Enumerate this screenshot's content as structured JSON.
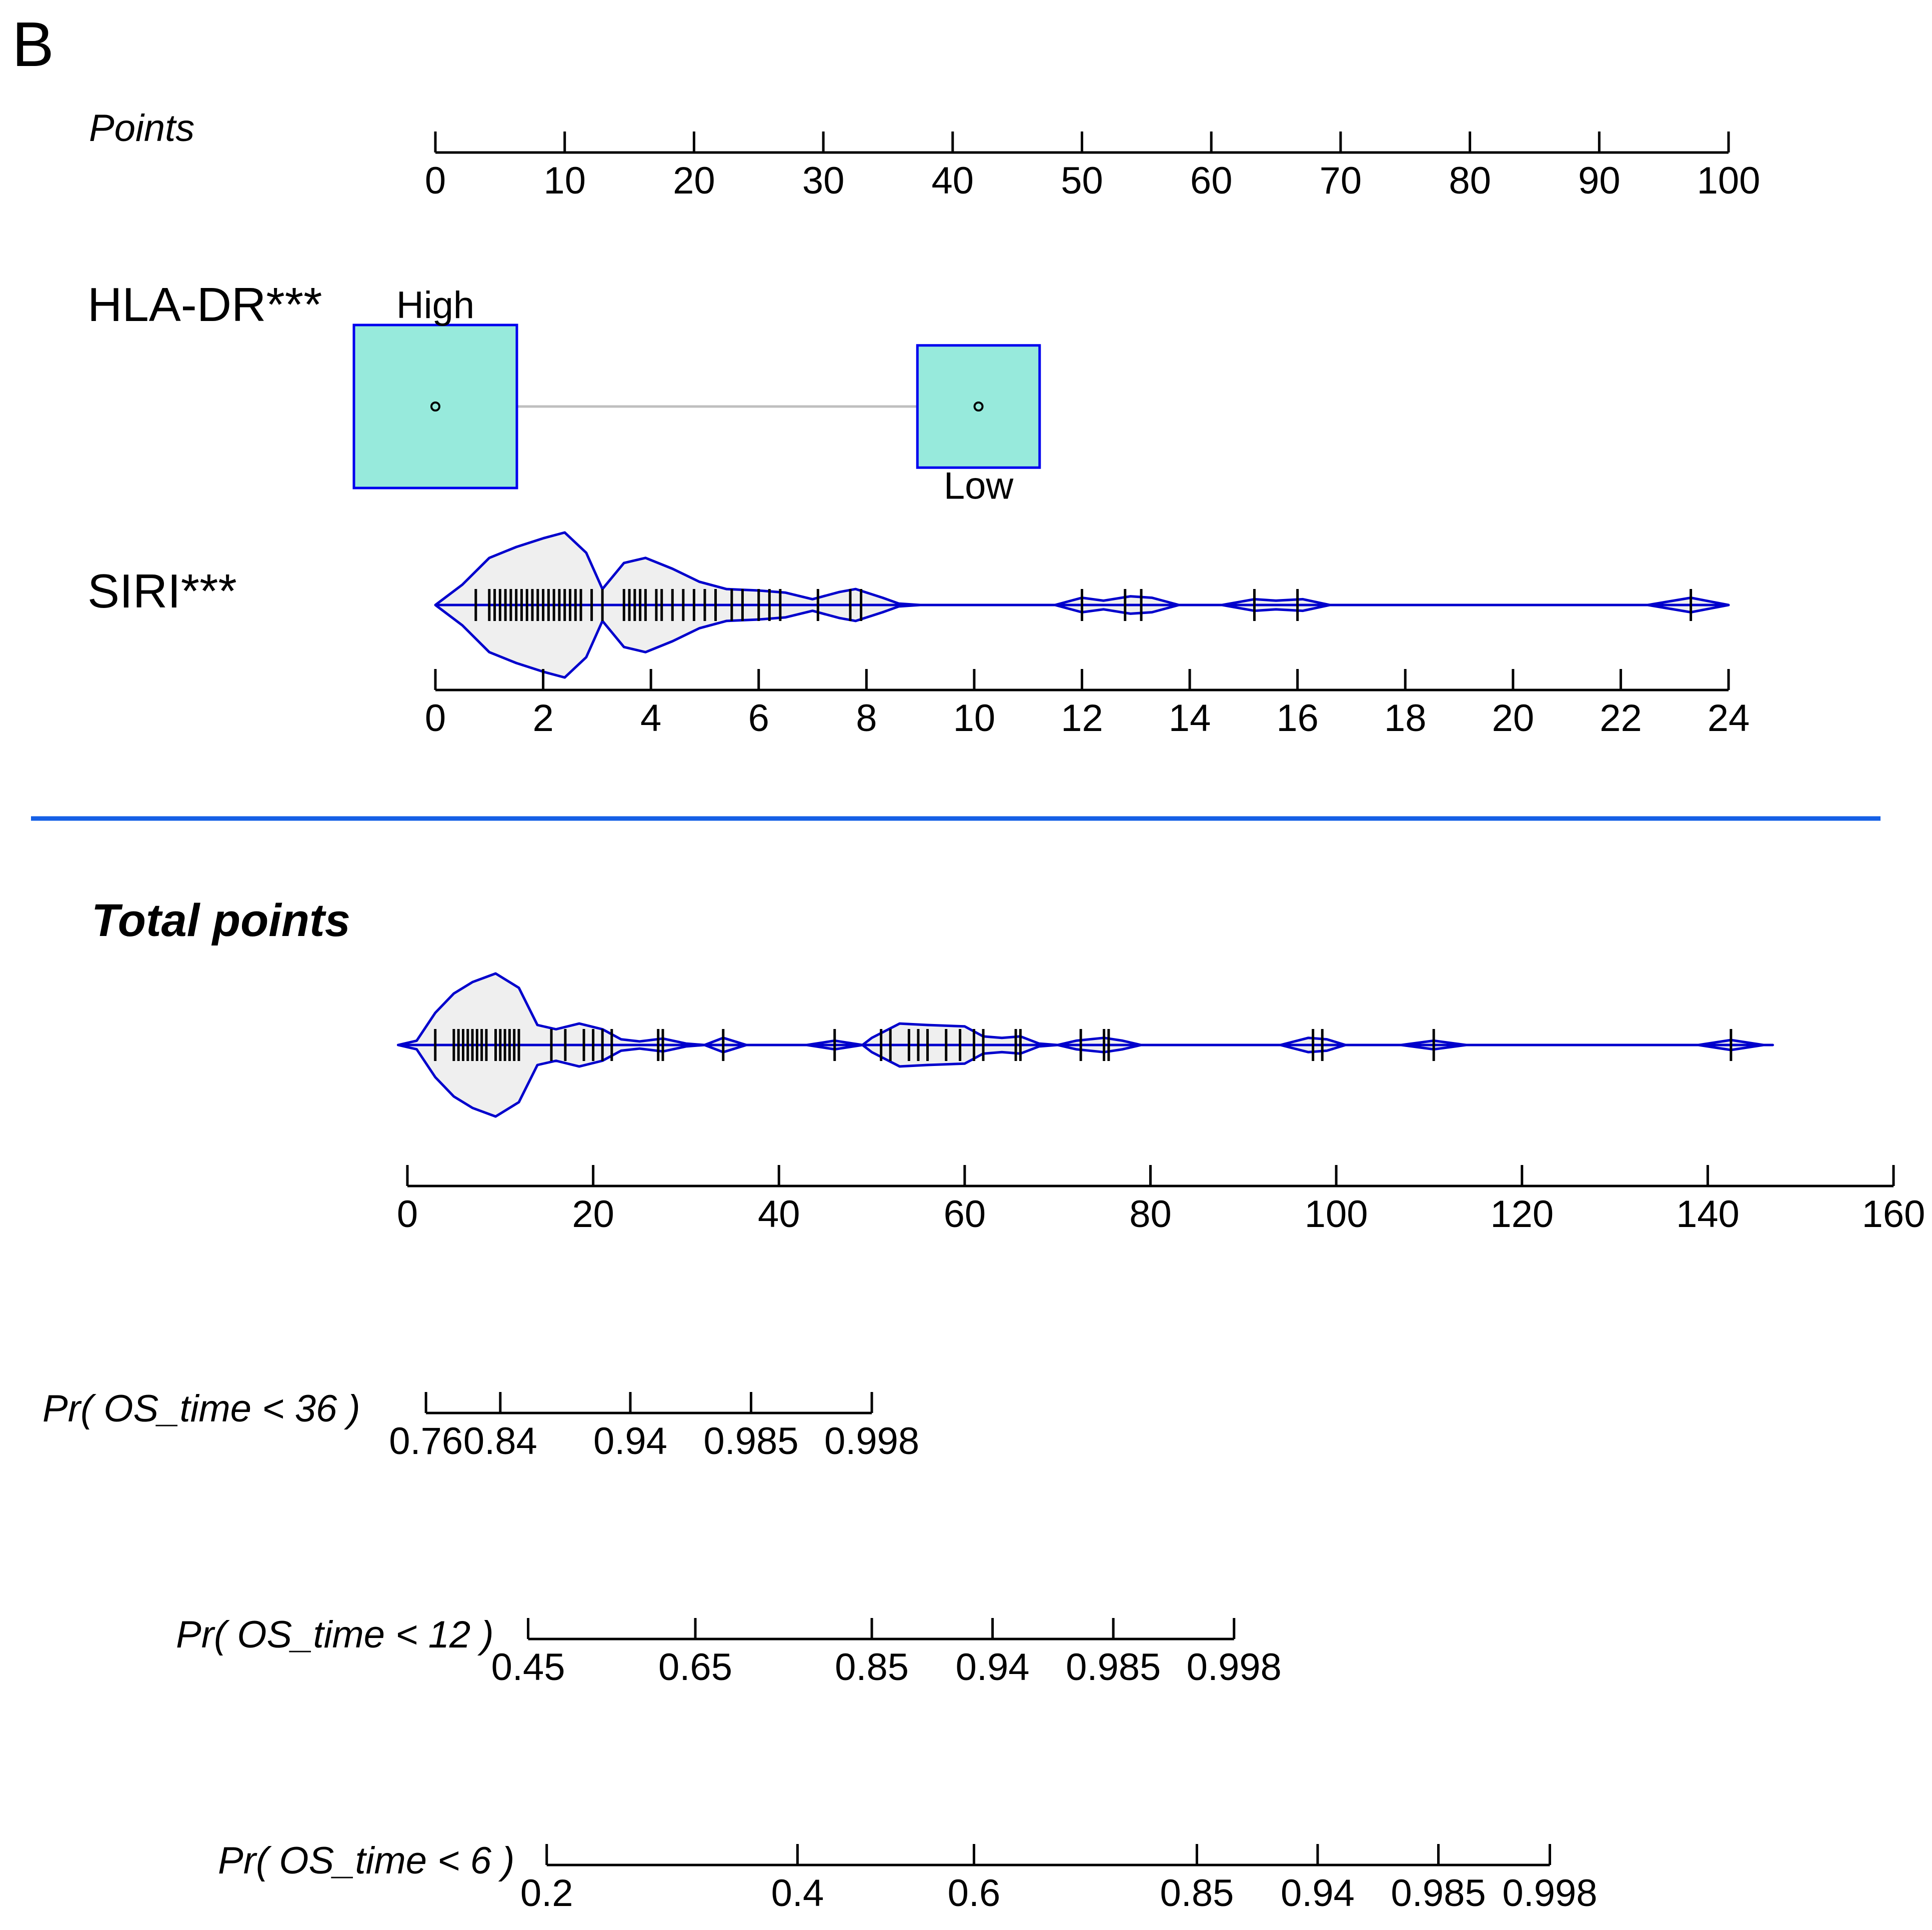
{
  "panel_label": "B",
  "chart_data": {
    "type": "nomogram",
    "colors": {
      "axis": "#000000",
      "box_fill": "#97eadc",
      "box_stroke": "#0000ee",
      "violin_stroke": "#0000cc",
      "violin_fill": "#efefef",
      "separator": "#1560e6",
      "connector": "#bfbfbf"
    },
    "points": {
      "label": "Points",
      "min": 0,
      "max": 100,
      "ticks": [
        0,
        10,
        20,
        30,
        40,
        50,
        60,
        70,
        80,
        90,
        100
      ]
    },
    "variables": [
      {
        "name": "HLA-DR***",
        "type": "categorical",
        "levels": [
          {
            "label": "High",
            "points": 0,
            "relative_size": 1.0
          },
          {
            "label": "Low",
            "points": 42,
            "relative_size": 0.75
          }
        ]
      },
      {
        "name": "SIRI***",
        "type": "continuous",
        "min": 0,
        "max": 24,
        "points_at_max": 100,
        "ticks": [
          0,
          2,
          4,
          6,
          8,
          10,
          12,
          14,
          16,
          18,
          20,
          22,
          24
        ],
        "violin_range": [
          0,
          24
        ],
        "observations": [
          0.75,
          1.0,
          1.1,
          1.2,
          1.3,
          1.4,
          1.5,
          1.6,
          1.7,
          1.8,
          1.9,
          2.0,
          2.1,
          2.2,
          2.3,
          2.4,
          2.5,
          2.6,
          2.7,
          2.9,
          3.1,
          3.5,
          3.6,
          3.7,
          3.8,
          3.9,
          4.1,
          4.2,
          4.4,
          4.6,
          4.8,
          5.0,
          5.2,
          5.5,
          5.7,
          6.0,
          6.2,
          6.4,
          7.1,
          7.7,
          7.9,
          12.0,
          12.8,
          13.1,
          15.2,
          16.0,
          23.3
        ],
        "density": [
          [
            0.0,
            0.0
          ],
          [
            0.5,
            0.28
          ],
          [
            1.0,
            0.65
          ],
          [
            1.5,
            0.8
          ],
          [
            2.0,
            0.92
          ],
          [
            2.4,
            1.0
          ],
          [
            2.8,
            0.72
          ],
          [
            3.1,
            0.22
          ],
          [
            3.5,
            0.58
          ],
          [
            3.9,
            0.65
          ],
          [
            4.4,
            0.5
          ],
          [
            4.9,
            0.32
          ],
          [
            5.4,
            0.22
          ],
          [
            6.0,
            0.2
          ],
          [
            6.5,
            0.17
          ],
          [
            7.0,
            0.08
          ],
          [
            7.5,
            0.18
          ],
          [
            7.8,
            0.22
          ],
          [
            8.3,
            0.1
          ],
          [
            8.6,
            0.02
          ],
          [
            9.0,
            0.0
          ],
          [
            11.5,
            0.0
          ],
          [
            12.0,
            0.1
          ],
          [
            12.4,
            0.06
          ],
          [
            12.9,
            0.12
          ],
          [
            13.3,
            0.1
          ],
          [
            13.8,
            0.0
          ],
          [
            14.6,
            0.0
          ],
          [
            15.2,
            0.08
          ],
          [
            15.6,
            0.06
          ],
          [
            16.1,
            0.08
          ],
          [
            16.6,
            0.0
          ],
          [
            22.5,
            0.0
          ],
          [
            23.3,
            0.1
          ],
          [
            24.0,
            0.0
          ]
        ]
      }
    ],
    "total_points": {
      "label": "Total points",
      "min": 0,
      "max": 160,
      "ticks": [
        0,
        20,
        40,
        60,
        80,
        100,
        120,
        140,
        160
      ],
      "violin_range": [
        -1,
        147
      ],
      "observations": [
        3,
        5,
        5.5,
        6,
        6.5,
        7,
        7.5,
        8,
        8.5,
        9.5,
        10,
        10.5,
        11,
        11.5,
        12,
        15.5,
        17,
        19,
        20,
        21,
        22,
        27,
        27.5,
        34,
        46,
        51,
        52,
        54,
        55,
        56,
        58,
        59.5,
        61,
        62,
        65.5,
        66,
        72.5,
        75,
        75.5,
        97.5,
        98.5,
        110.5,
        142.5
      ],
      "density": [
        [
          -1,
          0.0
        ],
        [
          1,
          0.06
        ],
        [
          3,
          0.45
        ],
        [
          5,
          0.72
        ],
        [
          7,
          0.88
        ],
        [
          9.5,
          1.0
        ],
        [
          12,
          0.8
        ],
        [
          14,
          0.28
        ],
        [
          16,
          0.22
        ],
        [
          18.5,
          0.3
        ],
        [
          21,
          0.22
        ],
        [
          23,
          0.08
        ],
        [
          25,
          0.05
        ],
        [
          27.5,
          0.09
        ],
        [
          30,
          0.02
        ],
        [
          32,
          0.0
        ],
        [
          34,
          0.1
        ],
        [
          36.5,
          0.0
        ],
        [
          43,
          0.0
        ],
        [
          46,
          0.06
        ],
        [
          49,
          0.0
        ],
        [
          50,
          0.1
        ],
        [
          53,
          0.3
        ],
        [
          56,
          0.28
        ],
        [
          60,
          0.26
        ],
        [
          62,
          0.12
        ],
        [
          64,
          0.1
        ],
        [
          66,
          0.12
        ],
        [
          68,
          0.02
        ],
        [
          70,
          0.0
        ],
        [
          72,
          0.06
        ],
        [
          75,
          0.1
        ],
        [
          77,
          0.06
        ],
        [
          79,
          0.0
        ],
        [
          94,
          0.0
        ],
        [
          97,
          0.1
        ],
        [
          99,
          0.08
        ],
        [
          101,
          0.0
        ],
        [
          107,
          0.0
        ],
        [
          110.5,
          0.06
        ],
        [
          114,
          0.0
        ],
        [
          139,
          0.0
        ],
        [
          142.5,
          0.07
        ],
        [
          146,
          0.0
        ]
      ]
    },
    "probabilities": [
      {
        "label": "Pr( OS_time < 36 )",
        "ticks": [
          {
            "label": "0.76",
            "total_points": 2
          },
          {
            "label": "0.84",
            "total_points": 10
          },
          {
            "label": "0.94",
            "total_points": 24
          },
          {
            "label": "0.985",
            "total_points": 37
          },
          {
            "label": "0.998",
            "total_points": 50
          }
        ]
      },
      {
        "label": "Pr( OS_time < 12 )",
        "ticks": [
          {
            "label": "0.45",
            "total_points": 13
          },
          {
            "label": "0.65",
            "total_points": 31
          },
          {
            "label": "0.85",
            "total_points": 50
          },
          {
            "label": "0.94",
            "total_points": 63
          },
          {
            "label": "0.985",
            "total_points": 76
          },
          {
            "label": "0.998",
            "total_points": 89
          }
        ]
      },
      {
        "label": "Pr( OS_time < 6 )",
        "ticks": [
          {
            "label": "0.2",
            "total_points": 15
          },
          {
            "label": "0.4",
            "total_points": 42
          },
          {
            "label": "0.6",
            "total_points": 61
          },
          {
            "label": "0.85",
            "total_points": 85
          },
          {
            "label": "0.94",
            "total_points": 98
          },
          {
            "label": "0.985",
            "total_points": 111
          },
          {
            "label": "0.998",
            "total_points": 123
          }
        ]
      }
    ]
  }
}
